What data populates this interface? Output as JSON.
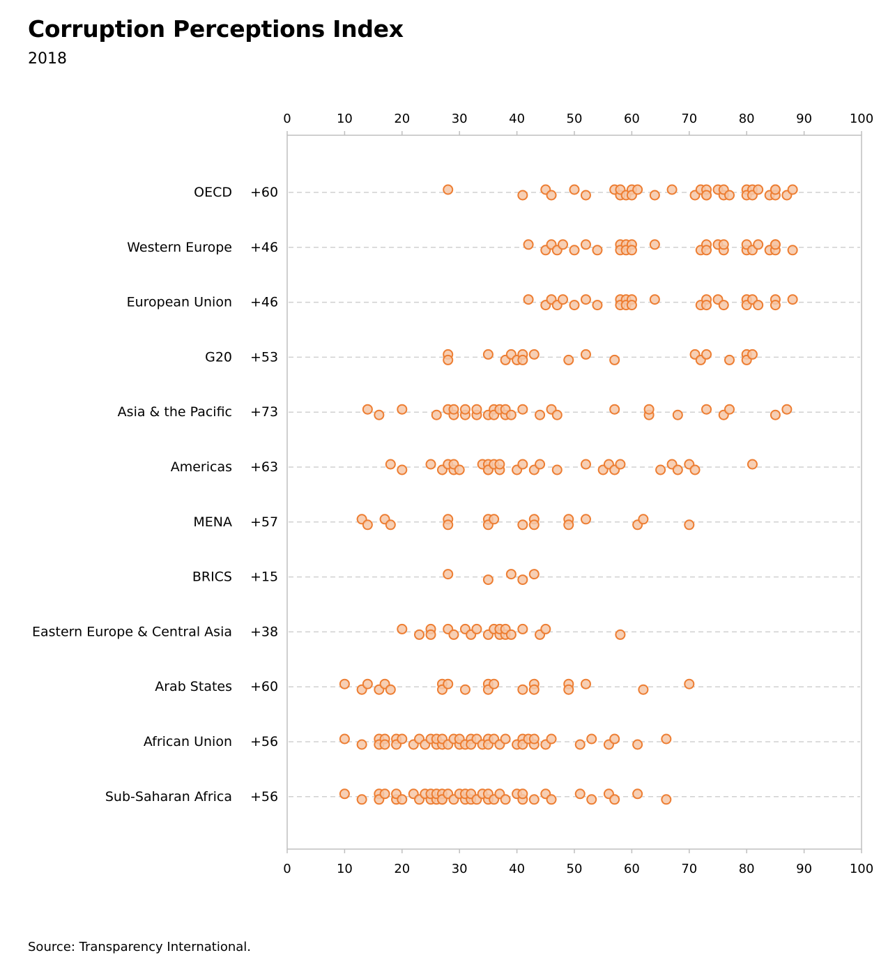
{
  "title": "Corruption Perceptions Index",
  "subtitle": "2018",
  "source": "Source: Transparency International.",
  "colors": {
    "marker_stroke": "#ED7D31",
    "marker_fill": "#F6C7A7",
    "gridline": "#D0D0D0",
    "axis": "#BFBFBF"
  },
  "chart_data": {
    "type": "scatter",
    "xlim": [
      0,
      100
    ],
    "xticks": [
      0,
      10,
      20,
      30,
      40,
      50,
      60,
      70,
      80,
      90,
      100
    ],
    "axis_position": "top and bottom",
    "grid": "dashed horizontal line per category",
    "legend": "none",
    "series": [
      {
        "name": "OECD",
        "diff_label": "+60",
        "values": [
          28,
          41,
          45,
          46,
          50,
          52,
          57,
          58,
          58,
          59,
          60,
          60,
          61,
          64,
          67,
          71,
          72,
          73,
          73,
          73,
          75,
          76,
          76,
          77,
          80,
          80,
          81,
          81,
          82,
          84,
          85,
          85,
          85,
          87,
          88
        ]
      },
      {
        "name": "Western Europe",
        "diff_label": "+46",
        "values": [
          42,
          45,
          46,
          47,
          48,
          50,
          52,
          54,
          58,
          58,
          59,
          59,
          60,
          60,
          64,
          72,
          73,
          73,
          75,
          76,
          76,
          80,
          80,
          81,
          82,
          84,
          85,
          85,
          85,
          88
        ]
      },
      {
        "name": "European Union",
        "diff_label": "+46",
        "values": [
          42,
          45,
          46,
          47,
          48,
          50,
          52,
          54,
          58,
          58,
          59,
          59,
          60,
          60,
          64,
          72,
          73,
          73,
          75,
          76,
          80,
          80,
          81,
          82,
          85,
          85,
          88
        ]
      },
      {
        "name": "G20",
        "diff_label": "+53",
        "values": [
          28,
          28,
          35,
          38,
          39,
          40,
          41,
          41,
          43,
          49,
          52,
          57,
          71,
          72,
          73,
          77,
          80,
          80,
          81
        ]
      },
      {
        "name": "Asia & the Pacific",
        "diff_label": "+73",
        "values": [
          14,
          16,
          20,
          26,
          28,
          29,
          29,
          31,
          31,
          33,
          33,
          35,
          36,
          36,
          37,
          38,
          38,
          39,
          41,
          44,
          46,
          47,
          57,
          63,
          63,
          68,
          73,
          76,
          77,
          85,
          87
        ]
      },
      {
        "name": "Americas",
        "diff_label": "+63",
        "values": [
          18,
          20,
          25,
          27,
          28,
          29,
          29,
          30,
          34,
          35,
          35,
          35,
          36,
          37,
          37,
          40,
          41,
          43,
          44,
          47,
          52,
          55,
          56,
          57,
          58,
          65,
          67,
          68,
          70,
          71,
          81
        ]
      },
      {
        "name": "MENA",
        "diff_label": "+57",
        "values": [
          13,
          14,
          17,
          18,
          28,
          28,
          35,
          35,
          36,
          41,
          43,
          43,
          49,
          49,
          52,
          61,
          62,
          70
        ]
      },
      {
        "name": "BRICS",
        "diff_label": "+15",
        "values": [
          28,
          35,
          39,
          41,
          43
        ]
      },
      {
        "name": "Eastern Europe & Central Asia",
        "diff_label": "+38",
        "values": [
          20,
          23,
          25,
          25,
          28,
          29,
          31,
          32,
          33,
          35,
          36,
          37,
          37,
          38,
          38,
          39,
          41,
          44,
          45,
          58
        ]
      },
      {
        "name": "Arab States",
        "diff_label": "+60",
        "values": [
          10,
          13,
          14,
          16,
          17,
          18,
          27,
          27,
          28,
          31,
          35,
          35,
          36,
          41,
          43,
          43,
          49,
          49,
          52,
          62,
          70
        ]
      },
      {
        "name": "African Union",
        "diff_label": "+56",
        "values": [
          10,
          13,
          16,
          16,
          17,
          17,
          19,
          19,
          20,
          22,
          23,
          24,
          25,
          26,
          26,
          27,
          27,
          28,
          29,
          30,
          30,
          31,
          32,
          32,
          33,
          34,
          35,
          35,
          36,
          37,
          38,
          40,
          41,
          41,
          42,
          43,
          43,
          45,
          46,
          51,
          53,
          56,
          57,
          61,
          66
        ]
      },
      {
        "name": "Sub-Saharan Africa",
        "diff_label": "+56",
        "values": [
          10,
          13,
          16,
          16,
          17,
          19,
          19,
          20,
          22,
          23,
          24,
          25,
          25,
          26,
          26,
          27,
          27,
          27,
          28,
          29,
          30,
          31,
          31,
          32,
          32,
          33,
          34,
          35,
          35,
          36,
          37,
          38,
          40,
          41,
          41,
          43,
          45,
          46,
          51,
          53,
          56,
          57,
          61,
          66
        ]
      }
    ]
  }
}
